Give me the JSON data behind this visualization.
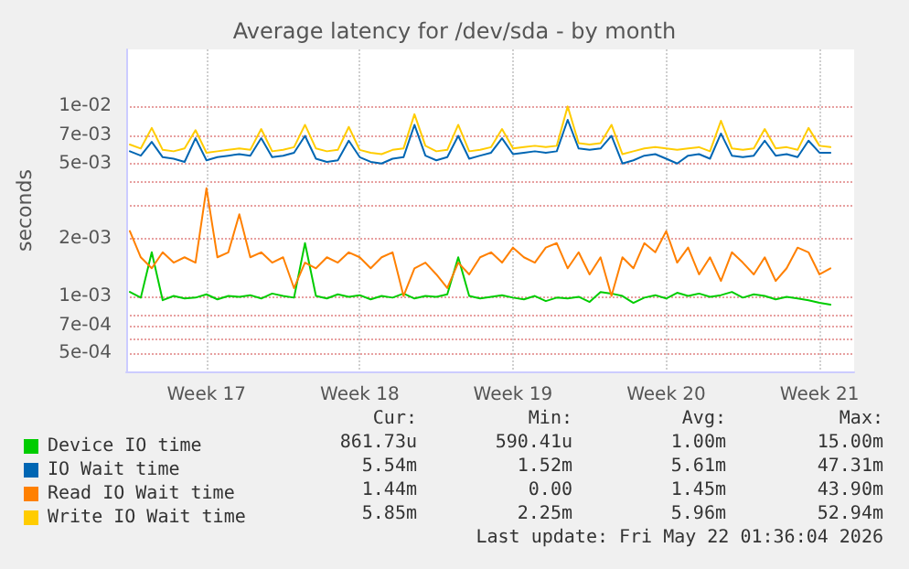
{
  "chart_data": {
    "type": "line",
    "title": "Average latency for /dev/sda - by month",
    "ylabel": "seconds",
    "x": [
      "2026-04-20T00:00",
      "2026-04-20T12:00",
      "2026-04-21T00:00",
      "2026-04-21T12:00",
      "2026-04-22T00:00",
      "2026-04-22T12:00",
      "2026-04-23T00:00",
      "2026-04-23T12:00",
      "2026-04-24T00:00",
      "2026-04-24T12:00",
      "2026-04-25T00:00",
      "2026-04-25T12:00",
      "2026-04-26T00:00",
      "2026-04-26T12:00",
      "2026-04-27T00:00",
      "2026-04-27T12:00",
      "2026-04-28T00:00",
      "2026-04-28T12:00",
      "2026-04-29T00:00",
      "2026-04-29T12:00",
      "2026-04-30T00:00",
      "2026-04-30T12:00",
      "2026-05-01T00:00",
      "2026-05-01T12:00",
      "2026-05-02T00:00",
      "2026-05-02T12:00",
      "2026-05-03T00:00",
      "2026-05-03T12:00",
      "2026-05-04T00:00",
      "2026-05-04T12:00",
      "2026-05-05T00:00",
      "2026-05-05T12:00",
      "2026-05-06T00:00",
      "2026-05-06T12:00",
      "2026-05-07T00:00",
      "2026-05-07T12:00",
      "2026-05-08T00:00",
      "2026-05-08T12:00",
      "2026-05-09T00:00",
      "2026-05-09T12:00",
      "2026-05-10T00:00",
      "2026-05-10T12:00",
      "2026-05-11T00:00",
      "2026-05-11T12:00",
      "2026-05-12T00:00",
      "2026-05-12T12:00",
      "2026-05-13T00:00",
      "2026-05-13T12:00",
      "2026-05-14T00:00",
      "2026-05-14T12:00",
      "2026-05-15T00:00",
      "2026-05-15T12:00",
      "2026-05-16T00:00",
      "2026-05-16T12:00",
      "2026-05-17T00:00",
      "2026-05-17T12:00",
      "2026-05-18T00:00",
      "2026-05-18T12:00",
      "2026-05-19T00:00",
      "2026-05-19T12:00",
      "2026-05-20T00:00",
      "2026-05-20T12:00",
      "2026-05-21T00:00",
      "2026-05-21T12:00",
      "2026-05-22T00:00"
    ],
    "series": [
      {
        "name": "Device IO time",
        "color": "#00cc00",
        "values": [
          0.00105,
          0.00098,
          0.0017,
          0.00095,
          0.001,
          0.00097,
          0.00098,
          0.00102,
          0.00096,
          0.001,
          0.00099,
          0.00101,
          0.00097,
          0.00103,
          0.001,
          0.00098,
          0.0019,
          0.001,
          0.00097,
          0.00102,
          0.00099,
          0.00101,
          0.00096,
          0.001,
          0.00098,
          0.00103,
          0.00097,
          0.001,
          0.00099,
          0.00102,
          0.0016,
          0.001,
          0.00097,
          0.00099,
          0.00101,
          0.00098,
          0.00096,
          0.001,
          0.00094,
          0.00098,
          0.00097,
          0.00099,
          0.00093,
          0.00105,
          0.00103,
          0.001,
          0.00092,
          0.00098,
          0.00101,
          0.00097,
          0.00104,
          0.001,
          0.00103,
          0.00099,
          0.00101,
          0.00105,
          0.00098,
          0.00102,
          0.001,
          0.00096,
          0.00099,
          0.00097,
          0.00095,
          0.00092,
          0.0009
        ]
      },
      {
        "name": "IO Wait time",
        "color": "#0066b3",
        "values": [
          0.0058,
          0.0055,
          0.0065,
          0.0054,
          0.0053,
          0.0051,
          0.0068,
          0.0052,
          0.0054,
          0.0055,
          0.0056,
          0.0055,
          0.0068,
          0.0054,
          0.0055,
          0.0057,
          0.007,
          0.0053,
          0.0051,
          0.0052,
          0.0066,
          0.0054,
          0.0051,
          0.005,
          0.0053,
          0.0054,
          0.008,
          0.0055,
          0.0052,
          0.0054,
          0.007,
          0.0053,
          0.0055,
          0.0057,
          0.0068,
          0.0056,
          0.0057,
          0.0058,
          0.0057,
          0.0058,
          0.0085,
          0.006,
          0.0059,
          0.006,
          0.007,
          0.005,
          0.0052,
          0.0055,
          0.0056,
          0.0053,
          0.005,
          0.0055,
          0.0056,
          0.0053,
          0.0072,
          0.0055,
          0.0054,
          0.0055,
          0.0066,
          0.0055,
          0.0056,
          0.0054,
          0.0066,
          0.0057,
          0.0057
        ]
      },
      {
        "name": "Read IO Wait time",
        "color": "#ff8000",
        "values": [
          0.0022,
          0.0016,
          0.0014,
          0.0017,
          0.0015,
          0.0016,
          0.0015,
          0.0037,
          0.0016,
          0.0017,
          0.0027,
          0.0016,
          0.0017,
          0.0015,
          0.0016,
          0.0011,
          0.0015,
          0.0014,
          0.0016,
          0.0015,
          0.0017,
          0.0016,
          0.0014,
          0.0016,
          0.0017,
          0.001,
          0.0014,
          0.0015,
          0.0013,
          0.0011,
          0.0015,
          0.0013,
          0.0016,
          0.0017,
          0.0015,
          0.0018,
          0.0016,
          0.0015,
          0.0018,
          0.0019,
          0.0014,
          0.0017,
          0.0013,
          0.0016,
          0.001,
          0.0016,
          0.0014,
          0.0019,
          0.0017,
          0.0022,
          0.0015,
          0.0018,
          0.0013,
          0.0016,
          0.0012,
          0.0017,
          0.0015,
          0.0013,
          0.0016,
          0.0012,
          0.0014,
          0.0018,
          0.0017,
          0.0013,
          0.0014
        ]
      },
      {
        "name": "Write IO Wait time",
        "color": "#ffcc00",
        "values": [
          0.0063,
          0.006,
          0.0077,
          0.0059,
          0.0058,
          0.006,
          0.0075,
          0.0057,
          0.0058,
          0.0059,
          0.006,
          0.0059,
          0.0076,
          0.0058,
          0.0059,
          0.0061,
          0.008,
          0.006,
          0.0058,
          0.0059,
          0.0078,
          0.0059,
          0.0057,
          0.0056,
          0.0059,
          0.006,
          0.0091,
          0.0062,
          0.0058,
          0.0059,
          0.008,
          0.0058,
          0.0059,
          0.0061,
          0.0076,
          0.006,
          0.0061,
          0.0062,
          0.0061,
          0.0062,
          0.01,
          0.0064,
          0.0063,
          0.0064,
          0.008,
          0.0056,
          0.0058,
          0.006,
          0.0061,
          0.006,
          0.0059,
          0.006,
          0.0061,
          0.0058,
          0.0084,
          0.006,
          0.0059,
          0.006,
          0.0076,
          0.006,
          0.0061,
          0.0059,
          0.0077,
          0.0062,
          0.0061
        ]
      }
    ],
    "log": "y",
    "ylim": [
      0.0004,
      0.02
    ],
    "yticks": [
      {
        "value": 0.0005,
        "label": "5e-04"
      },
      {
        "value": 0.0006,
        "label": null
      },
      {
        "value": 0.0007,
        "label": "7e-04"
      },
      {
        "value": 0.0008,
        "label": null
      },
      {
        "value": 0.001,
        "label": "1e-03"
      },
      {
        "value": 0.002,
        "label": "2e-03"
      },
      {
        "value": 0.003,
        "label": null
      },
      {
        "value": 0.004,
        "label": null
      },
      {
        "value": 0.005,
        "label": "5e-03"
      },
      {
        "value": 0.007,
        "label": "7e-03"
      },
      {
        "value": 0.01,
        "label": "1e-02"
      }
    ],
    "xlim": [
      "2026-04-19T20:00",
      "2026-05-23T02:00"
    ],
    "xticks": [
      {
        "value": "2026-04-23T12:00",
        "label": "Week 17"
      },
      {
        "value": "2026-04-30T12:00",
        "label": "Week 18"
      },
      {
        "value": "2026-05-07T12:00",
        "label": "Week 19"
      },
      {
        "value": "2026-05-14T12:00",
        "label": "Week 20"
      },
      {
        "value": "2026-05-21T12:00",
        "label": "Week 21"
      }
    ],
    "grid": true,
    "legend": "bottom left",
    "marker": "none",
    "line_style": "solid",
    "annotations": [
      "Cur:",
      "Min:",
      "Avg:",
      "Max:",
      "861.73u",
      "590.41u",
      "1.00m",
      "15.00m",
      "5.54m",
      "1.52m",
      "5.61m",
      "47.31m",
      "1.44m",
      "0.00",
      "1.45m",
      "43.90m",
      "5.85m",
      "2.25m",
      "5.96m",
      "52.94m",
      "Last update: Fri May 22 01:36:04 2026"
    ]
  }
}
